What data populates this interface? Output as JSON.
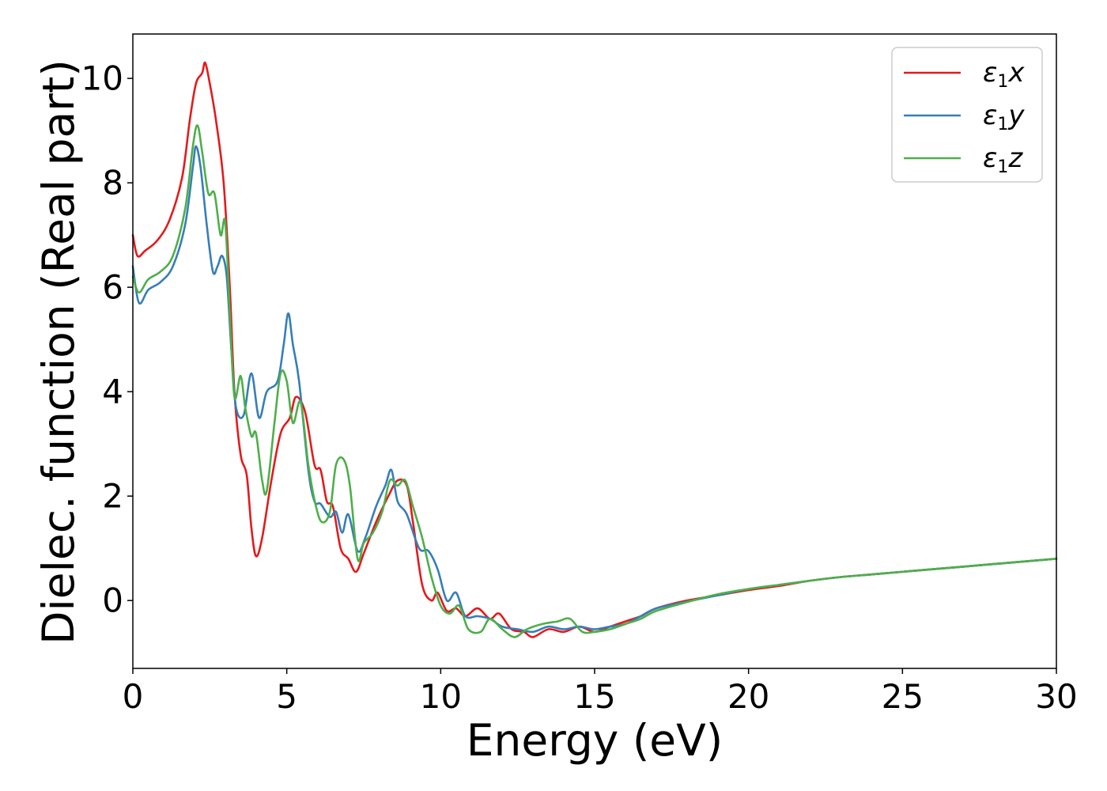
{
  "chart_data": {
    "type": "line",
    "xlabel": "Energy (eV)",
    "ylabel": "Dielec. function (Real part)",
    "xlim": [
      0,
      30
    ],
    "ylim": [
      -1.3,
      10.85
    ],
    "xticks": [
      0,
      5,
      10,
      15,
      20,
      25,
      30
    ],
    "yticks": [
      0,
      2,
      4,
      6,
      8,
      10
    ],
    "grid": false,
    "legend_position": "top-right",
    "series": [
      {
        "name_base": "ε",
        "name_sub": "1",
        "name_suffix": "x",
        "color": "#e41a1c",
        "points": [
          [
            0,
            7.0
          ],
          [
            0.15,
            6.6
          ],
          [
            0.4,
            6.7
          ],
          [
            0.8,
            6.9
          ],
          [
            1.2,
            7.3
          ],
          [
            1.6,
            8.1
          ],
          [
            1.85,
            9.2
          ],
          [
            2.05,
            9.9
          ],
          [
            2.25,
            10.1
          ],
          [
            2.35,
            10.3
          ],
          [
            2.5,
            9.9
          ],
          [
            2.7,
            9.2
          ],
          [
            2.95,
            8.0
          ],
          [
            3.15,
            6.0
          ],
          [
            3.3,
            4.0
          ],
          [
            3.5,
            2.8
          ],
          [
            3.7,
            2.4
          ],
          [
            3.85,
            1.4
          ],
          [
            4.0,
            0.85
          ],
          [
            4.2,
            1.2
          ],
          [
            4.5,
            2.3
          ],
          [
            4.8,
            3.2
          ],
          [
            5.1,
            3.5
          ],
          [
            5.3,
            3.9
          ],
          [
            5.6,
            3.6
          ],
          [
            5.9,
            2.6
          ],
          [
            6.1,
            2.5
          ],
          [
            6.3,
            1.9
          ],
          [
            6.5,
            1.8
          ],
          [
            6.75,
            1.0
          ],
          [
            7.0,
            0.8
          ],
          [
            7.25,
            0.55
          ],
          [
            7.5,
            0.9
          ],
          [
            7.9,
            1.5
          ],
          [
            8.3,
            2.0
          ],
          [
            8.6,
            2.3
          ],
          [
            8.9,
            2.2
          ],
          [
            9.1,
            1.5
          ],
          [
            9.4,
            0.3
          ],
          [
            9.7,
            0.0
          ],
          [
            9.9,
            0.15
          ],
          [
            10.2,
            -0.2
          ],
          [
            10.5,
            -0.15
          ],
          [
            10.8,
            -0.3
          ],
          [
            11.2,
            -0.15
          ],
          [
            11.6,
            -0.35
          ],
          [
            11.9,
            -0.25
          ],
          [
            12.3,
            -0.55
          ],
          [
            12.7,
            -0.6
          ],
          [
            13.0,
            -0.7
          ],
          [
            13.5,
            -0.55
          ],
          [
            14.0,
            -0.6
          ],
          [
            14.5,
            -0.5
          ],
          [
            15.0,
            -0.6
          ],
          [
            15.5,
            -0.5
          ],
          [
            16.0,
            -0.4
          ],
          [
            16.5,
            -0.3
          ],
          [
            17.0,
            -0.15
          ],
          [
            18.0,
            0.0
          ],
          [
            19.0,
            0.1
          ],
          [
            20.0,
            0.2
          ],
          [
            21.0,
            0.28
          ],
          [
            22.0,
            0.38
          ],
          [
            23.0,
            0.45
          ],
          [
            24.0,
            0.5
          ],
          [
            25.0,
            0.55
          ],
          [
            26.0,
            0.6
          ],
          [
            27.0,
            0.65
          ],
          [
            28.0,
            0.7
          ],
          [
            29.0,
            0.75
          ],
          [
            30.0,
            0.8
          ]
        ]
      },
      {
        "name_base": "ε",
        "name_sub": "1",
        "name_suffix": "y",
        "color": "#377eb8",
        "points": [
          [
            0,
            6.4
          ],
          [
            0.2,
            5.7
          ],
          [
            0.5,
            5.95
          ],
          [
            0.9,
            6.1
          ],
          [
            1.3,
            6.4
          ],
          [
            1.7,
            7.2
          ],
          [
            1.95,
            8.3
          ],
          [
            2.05,
            8.7
          ],
          [
            2.2,
            8.3
          ],
          [
            2.4,
            7.2
          ],
          [
            2.6,
            6.3
          ],
          [
            2.75,
            6.4
          ],
          [
            2.9,
            6.6
          ],
          [
            3.05,
            6.2
          ],
          [
            3.2,
            4.8
          ],
          [
            3.35,
            3.7
          ],
          [
            3.6,
            3.55
          ],
          [
            3.85,
            4.35
          ],
          [
            4.1,
            3.5
          ],
          [
            4.35,
            4.0
          ],
          [
            4.7,
            4.2
          ],
          [
            4.9,
            4.9
          ],
          [
            5.05,
            5.5
          ],
          [
            5.2,
            4.9
          ],
          [
            5.4,
            4.2
          ],
          [
            5.7,
            2.5
          ],
          [
            5.9,
            1.9
          ],
          [
            6.1,
            1.85
          ],
          [
            6.4,
            1.6
          ],
          [
            6.6,
            1.7
          ],
          [
            6.8,
            1.3
          ],
          [
            7.0,
            1.65
          ],
          [
            7.3,
            0.95
          ],
          [
            7.55,
            1.2
          ],
          [
            7.9,
            1.8
          ],
          [
            8.2,
            2.2
          ],
          [
            8.4,
            2.5
          ],
          [
            8.6,
            1.9
          ],
          [
            8.9,
            1.65
          ],
          [
            9.3,
            1.0
          ],
          [
            9.6,
            0.95
          ],
          [
            9.9,
            0.6
          ],
          [
            10.2,
            0.0
          ],
          [
            10.5,
            0.15
          ],
          [
            10.8,
            -0.3
          ],
          [
            11.2,
            -0.3
          ],
          [
            11.6,
            -0.35
          ],
          [
            12.0,
            -0.5
          ],
          [
            12.5,
            -0.55
          ],
          [
            13.0,
            -0.6
          ],
          [
            13.5,
            -0.5
          ],
          [
            14.0,
            -0.55
          ],
          [
            14.5,
            -0.5
          ],
          [
            15.0,
            -0.55
          ],
          [
            15.5,
            -0.5
          ],
          [
            16.0,
            -0.45
          ],
          [
            16.5,
            -0.3
          ],
          [
            17.0,
            -0.15
          ],
          [
            18.0,
            -0.02
          ],
          [
            19.0,
            0.1
          ],
          [
            20.0,
            0.22
          ],
          [
            21.0,
            0.3
          ],
          [
            22.0,
            0.38
          ],
          [
            23.0,
            0.45
          ],
          [
            24.0,
            0.5
          ],
          [
            25.0,
            0.55
          ],
          [
            26.0,
            0.6
          ],
          [
            27.0,
            0.65
          ],
          [
            28.0,
            0.7
          ],
          [
            29.0,
            0.75
          ],
          [
            30.0,
            0.8
          ]
        ]
      },
      {
        "name_base": "ε",
        "name_sub": "1",
        "name_suffix": "z",
        "color": "#4daf4a",
        "points": [
          [
            0,
            6.2
          ],
          [
            0.2,
            5.9
          ],
          [
            0.5,
            6.15
          ],
          [
            0.9,
            6.3
          ],
          [
            1.3,
            6.6
          ],
          [
            1.7,
            7.5
          ],
          [
            1.95,
            8.7
          ],
          [
            2.1,
            9.1
          ],
          [
            2.25,
            8.6
          ],
          [
            2.45,
            7.8
          ],
          [
            2.65,
            7.8
          ],
          [
            2.85,
            7.0
          ],
          [
            3.0,
            7.25
          ],
          [
            3.15,
            5.5
          ],
          [
            3.3,
            3.9
          ],
          [
            3.5,
            4.3
          ],
          [
            3.65,
            3.7
          ],
          [
            3.85,
            3.15
          ],
          [
            4.0,
            3.2
          ],
          [
            4.2,
            2.3
          ],
          [
            4.35,
            2.1
          ],
          [
            4.6,
            3.4
          ],
          [
            4.8,
            4.35
          ],
          [
            5.0,
            4.2
          ],
          [
            5.2,
            3.4
          ],
          [
            5.45,
            3.8
          ],
          [
            5.7,
            2.6
          ],
          [
            5.95,
            1.8
          ],
          [
            6.15,
            1.5
          ],
          [
            6.4,
            1.7
          ],
          [
            6.6,
            2.6
          ],
          [
            6.85,
            2.7
          ],
          [
            7.05,
            2.2
          ],
          [
            7.3,
            0.8
          ],
          [
            7.5,
            1.1
          ],
          [
            7.8,
            1.3
          ],
          [
            8.1,
            1.7
          ],
          [
            8.35,
            2.3
          ],
          [
            8.6,
            2.2
          ],
          [
            8.85,
            2.3
          ],
          [
            9.1,
            1.8
          ],
          [
            9.4,
            1.2
          ],
          [
            9.7,
            0.45
          ],
          [
            10.0,
            -0.1
          ],
          [
            10.3,
            -0.25
          ],
          [
            10.6,
            -0.1
          ],
          [
            10.9,
            -0.55
          ],
          [
            11.3,
            -0.6
          ],
          [
            11.6,
            -0.35
          ],
          [
            12.0,
            -0.55
          ],
          [
            12.4,
            -0.7
          ],
          [
            12.8,
            -0.55
          ],
          [
            13.3,
            -0.45
          ],
          [
            13.8,
            -0.4
          ],
          [
            14.2,
            -0.35
          ],
          [
            14.6,
            -0.6
          ],
          [
            15.0,
            -0.6
          ],
          [
            15.5,
            -0.55
          ],
          [
            16.0,
            -0.45
          ],
          [
            16.5,
            -0.35
          ],
          [
            17.0,
            -0.2
          ],
          [
            18.0,
            -0.03
          ],
          [
            19.0,
            0.12
          ],
          [
            20.0,
            0.22
          ],
          [
            21.0,
            0.3
          ],
          [
            22.0,
            0.38
          ],
          [
            23.0,
            0.45
          ],
          [
            24.0,
            0.5
          ],
          [
            25.0,
            0.55
          ],
          [
            26.0,
            0.6
          ],
          [
            27.0,
            0.65
          ],
          [
            28.0,
            0.7
          ],
          [
            29.0,
            0.75
          ],
          [
            30.0,
            0.8
          ]
        ]
      }
    ]
  }
}
